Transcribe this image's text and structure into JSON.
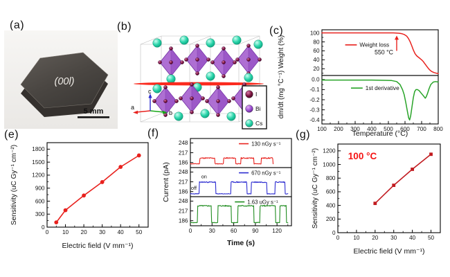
{
  "panels": {
    "a": {
      "label": "(a)",
      "face_label": "(00l)",
      "scalebar_label": "5 mm"
    },
    "b": {
      "label": "(b)",
      "axis_a": "a",
      "axis_b": "b",
      "axis_c": "c",
      "legend": [
        {
          "label": "I",
          "color": "#5e1060"
        },
        {
          "label": "Bi",
          "color": "#9a4ecf"
        },
        {
          "label": "Cs",
          "color": "#19c8a2"
        }
      ]
    },
    "c": {
      "label": "(c)"
    },
    "e": {
      "label": "(e)"
    },
    "f": {
      "label": "(f)"
    },
    "g": {
      "label": "(g)"
    }
  },
  "colors": {
    "red": "#e8211d",
    "dark_red": "#c11b20",
    "green": "#27a327",
    "blue": "#2b2bd0",
    "annotation_red": "#f51313"
  },
  "chart_data": [
    {
      "id": "c",
      "type": "line",
      "title": "",
      "xlabel": "Temperature (°C)",
      "ylabel": "dm/dt (mg °C⁻¹) Weight (%)",
      "xlim": [
        100,
        800
      ],
      "xticks": [
        100,
        200,
        300,
        400,
        500,
        600,
        700,
        800
      ],
      "xminor": 50,
      "panels": [
        {
          "name": "weight-loss",
          "ylabel_part": "Weight (%)",
          "ylim": [
            5,
            107
          ],
          "yticks": [
            20,
            40,
            60,
            80,
            100
          ],
          "yminor": 10,
          "legend": {
            "label": "Weight loss",
            "color": "#e8211d"
          },
          "annotation": {
            "text": "550 °C",
            "x": 550,
            "text_y": 57,
            "arrow_y": [
              60,
              94
            ]
          },
          "series": {
            "name": "Weight loss",
            "color": "#e8211d",
            "x": [
              100,
              150,
              200,
              250,
              300,
              350,
              400,
              450,
              500,
              530,
              550,
              565,
              580,
              595,
              610,
              620,
              630,
              640,
              650,
              660,
              670,
              680,
              690,
              700,
              710,
              720,
              730,
              740,
              750,
              760,
              775,
              790,
              800
            ],
            "y": [
              100,
              100,
              100,
              100,
              100,
              100,
              100,
              100,
              100,
              100,
              99.8,
              99.3,
              98.3,
              96.5,
              93,
              88,
              81,
              72,
              62,
              54,
              49,
              46,
              43,
              40,
              36,
              31,
              26,
              21,
              17,
              14,
              11.5,
              10,
              9.5
            ]
          }
        },
        {
          "name": "first-derivative",
          "ylabel_part": "dm/dt (mg °C⁻¹)",
          "ylim": [
            -0.44,
            0.04
          ],
          "yticks": [
            0.0,
            -0.1,
            -0.2,
            -0.3,
            -0.4
          ],
          "yminor": 0.05,
          "ydec": 1,
          "legend": {
            "label": "1st derivative",
            "color": "#27a327"
          },
          "series": {
            "name": "1st derivative",
            "color": "#27a327",
            "x": [
              100,
              200,
              300,
              400,
              480,
              520,
              550,
              570,
              585,
              595,
              605,
              615,
              622,
              628,
              634,
              642,
              650,
              658,
              666,
              675,
              685,
              695,
              705,
              715,
              722,
              728,
              735,
              745,
              755,
              770,
              785,
              800
            ],
            "y": [
              -0.005,
              -0.005,
              -0.005,
              -0.005,
              -0.008,
              -0.01,
              -0.02,
              -0.05,
              -0.1,
              -0.15,
              -0.23,
              -0.32,
              -0.38,
              -0.4,
              -0.36,
              -0.27,
              -0.18,
              -0.12,
              -0.1,
              -0.1,
              -0.11,
              -0.13,
              -0.15,
              -0.17,
              -0.185,
              -0.17,
              -0.14,
              -0.09,
              -0.05,
              -0.025,
              -0.02,
              -0.025
            ]
          }
        }
      ]
    },
    {
      "id": "e",
      "type": "scatter-line",
      "title": "",
      "xlabel": "Electric field (V mm⁻¹)",
      "ylabel": "Sensitivity (uC Gy⁻¹ cm⁻²)",
      "xlim": [
        0,
        55
      ],
      "xticks": [
        0,
        10,
        20,
        30,
        40,
        50
      ],
      "xminor": 5,
      "ylim": [
        0,
        1950
      ],
      "yticks": [
        0,
        300,
        600,
        900,
        1200,
        1500,
        1800
      ],
      "yminor": 150,
      "series": [
        {
          "name": "sensitivity",
          "color": "#e8211d",
          "marker": "circle",
          "x": [
            5,
            10,
            20,
            30,
            40,
            50
          ],
          "y": [
            110,
            390,
            730,
            1040,
            1390,
            1655
          ]
        }
      ],
      "annotations": []
    },
    {
      "id": "f",
      "type": "square-wave",
      "title": "",
      "xlabel": "Time (s)",
      "ylabel": "Current (pA)",
      "xlim": [
        0,
        140
      ],
      "xticks": [
        0,
        30,
        60,
        90,
        120
      ],
      "xminor": 15,
      "subpanels": [
        {
          "legend": "130 nGy s⁻¹",
          "color": "#e8211d",
          "ylim": [
            170,
            262
          ],
          "yticks": [
            186,
            217,
            248
          ],
          "baseline": 182,
          "on_level": 200,
          "t_end": 115,
          "seed": 11,
          "on_intervals": [
            [
              13,
              34
            ],
            [
              46,
              63
            ],
            [
              70,
              88
            ],
            [
              98,
              114
            ]
          ]
        },
        {
          "legend": "670 nGy s⁻¹",
          "color": "#2b2bd0",
          "ylim": [
            170,
            262
          ],
          "yticks": [
            186,
            217,
            248
          ],
          "baseline": 179,
          "on_level": 216,
          "t_end": 135,
          "seed": 23,
          "on_intervals": [
            [
              12,
              35
            ],
            [
              56,
              78
            ],
            [
              84,
              106
            ],
            [
              117,
              131
            ]
          ],
          "on_label": {
            "text": "on",
            "t": 19,
            "y": 228
          },
          "off_label": {
            "text": "off",
            "t": 1,
            "y": 192
          }
        },
        {
          "legend": "1.63 uGy s⁻¹",
          "color": "#1f8c1f",
          "ylim": [
            170,
            262
          ],
          "yticks": [
            186,
            217,
            248
          ],
          "baseline": 180,
          "on_level": 233,
          "t_end": 135,
          "seed": 5,
          "on_intervals": [
            [
              10,
              29
            ],
            [
              38,
              57
            ],
            [
              66,
              88
            ],
            [
              96,
              118
            ],
            [
              124,
              133
            ]
          ]
        }
      ]
    },
    {
      "id": "g",
      "type": "scatter-line",
      "title": "",
      "xlabel": "Electric field (V mm⁻¹)",
      "ylabel": "Sensitivity (uC Gy⁻¹ cm⁻²)",
      "xlim": [
        0,
        55
      ],
      "xticks": [
        0,
        10,
        20,
        30,
        40,
        50
      ],
      "xminor": 5,
      "ylim": [
        0,
        1300
      ],
      "yticks": [
        0,
        200,
        400,
        600,
        800,
        1000,
        1200
      ],
      "yminor": 100,
      "series": [
        {
          "name": "sensitivity-100C",
          "color": "#c11b20",
          "marker": "square",
          "x": [
            20,
            30,
            40,
            50
          ],
          "y": [
            430,
            695,
            930,
            1150
          ]
        }
      ],
      "annotations": [
        {
          "text": "100 °C",
          "fx": 0.1,
          "fy": 0.17,
          "color": "#f51313",
          "fs": 13.5,
          "weight": "bold"
        }
      ]
    }
  ]
}
